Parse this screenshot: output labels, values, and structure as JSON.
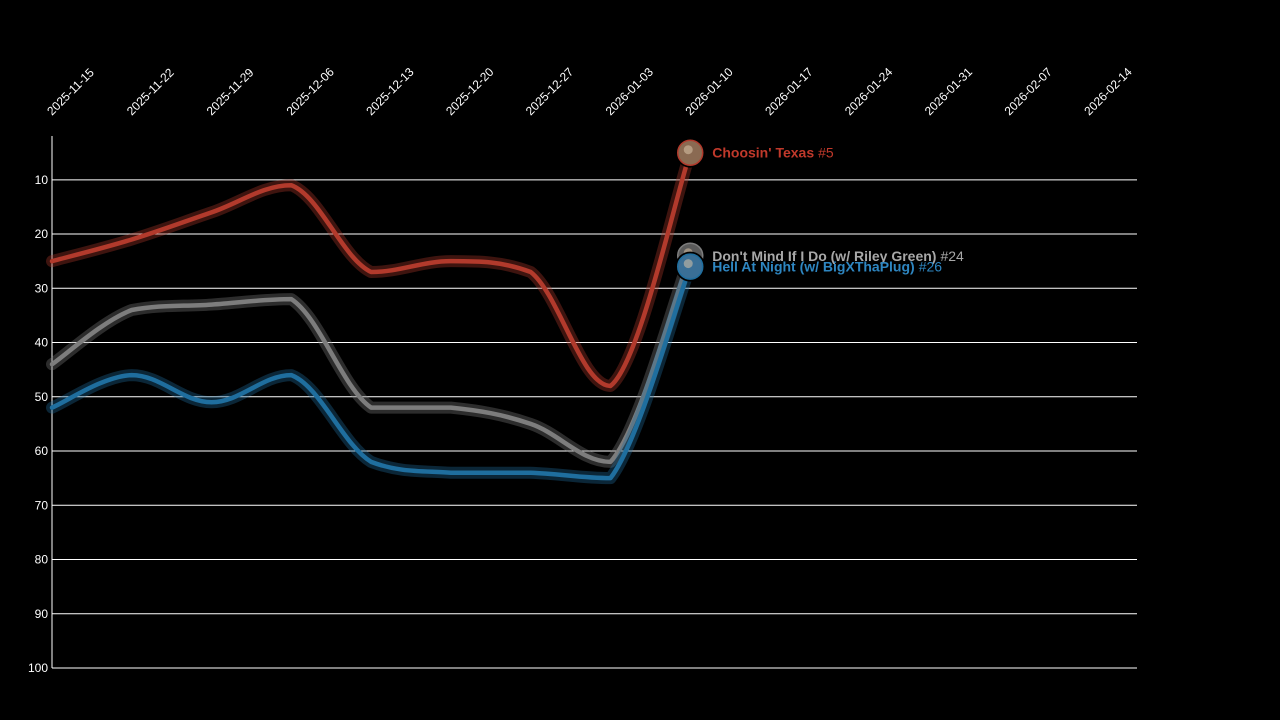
{
  "chart_data": {
    "type": "line",
    "title": "",
    "xlabel": "",
    "ylabel": "",
    "x_ticks": [
      "2025-11-15",
      "2025-11-22",
      "2025-11-29",
      "2025-12-06",
      "2025-12-13",
      "2025-12-20",
      "2025-12-27",
      "2026-01-03",
      "2026-01-10",
      "2026-01-17",
      "2026-01-24",
      "2026-01-31",
      "2026-02-07",
      "2026-02-14"
    ],
    "y_ticks": [
      10,
      20,
      30,
      40,
      50,
      60,
      70,
      80,
      90,
      100
    ],
    "xlim": [
      "2025-11-15",
      "2026-02-19"
    ],
    "ylim": [
      100,
      1
    ],
    "y_inverted": true,
    "grid": "horizontal",
    "x_axis_position": "top",
    "x": [
      "2025-11-15",
      "2025-11-22",
      "2025-11-29",
      "2025-12-06",
      "2025-12-13",
      "2025-12-20",
      "2025-12-27",
      "2026-01-03",
      "2026-01-10"
    ],
    "series": [
      {
        "name": "Choosin' Texas",
        "rank_label": "#5",
        "color": "#b23a2c",
        "label_color": "#c0392b",
        "avatar_color": "#8a6a52",
        "values": [
          25,
          21,
          16,
          11,
          27,
          25,
          27,
          48,
          5
        ]
      },
      {
        "name": "Don't Mind If I Do (w/ Riley Green)",
        "rank_label": "#24",
        "color": "#7d7d7d",
        "label_color": "#a8a8a8",
        "avatar_color": "#5a5a5a",
        "values": [
          44,
          34,
          33,
          32,
          52,
          52,
          55,
          62,
          24
        ]
      },
      {
        "name": "Hell At Night (w/ BigXThaPlug)",
        "rank_label": "#26",
        "color": "#1f6e9e",
        "label_color": "#2e86c1",
        "avatar_color": "#3a6f96",
        "values": [
          52,
          46,
          51,
          46,
          62,
          64,
          64,
          65,
          26
        ]
      }
    ]
  }
}
